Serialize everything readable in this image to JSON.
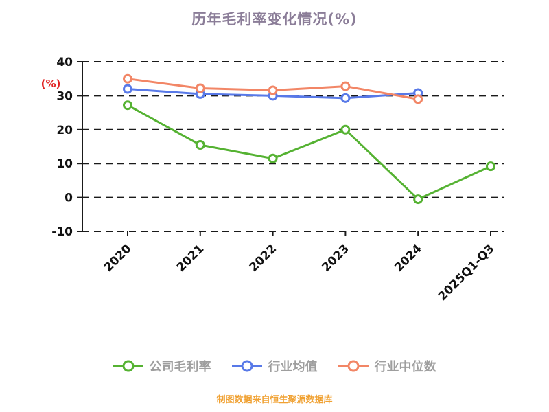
{
  "chart_data": {
    "type": "line",
    "title": "历年毛利率变化情况(%)",
    "ylabel": "(%)",
    "ylabel_color": "#e02222",
    "ylim": [
      -10,
      40
    ],
    "yticks": [
      40,
      30,
      20,
      10,
      0,
      -10
    ],
    "categories": [
      "2020",
      "2021",
      "2022",
      "2023",
      "2024",
      "2025Q1-Q3"
    ],
    "series": [
      {
        "name": "公司毛利率",
        "color": "#55b232",
        "values": [
          27.2,
          15.5,
          11.5,
          20.0,
          -0.5,
          9.2
        ]
      },
      {
        "name": "行业均值",
        "color": "#5879e8",
        "values": [
          32.0,
          30.5,
          30.0,
          29.3,
          30.8,
          null
        ]
      },
      {
        "name": "行业中位数",
        "color": "#f28666",
        "values": [
          35.0,
          32.2,
          31.6,
          32.8,
          29.0,
          null
        ]
      }
    ],
    "grid": "dashed-horizontal",
    "legend_position": "bottom",
    "axis_text_color": "#111111",
    "source_note": "制图数据来自恒生聚源数据库"
  }
}
